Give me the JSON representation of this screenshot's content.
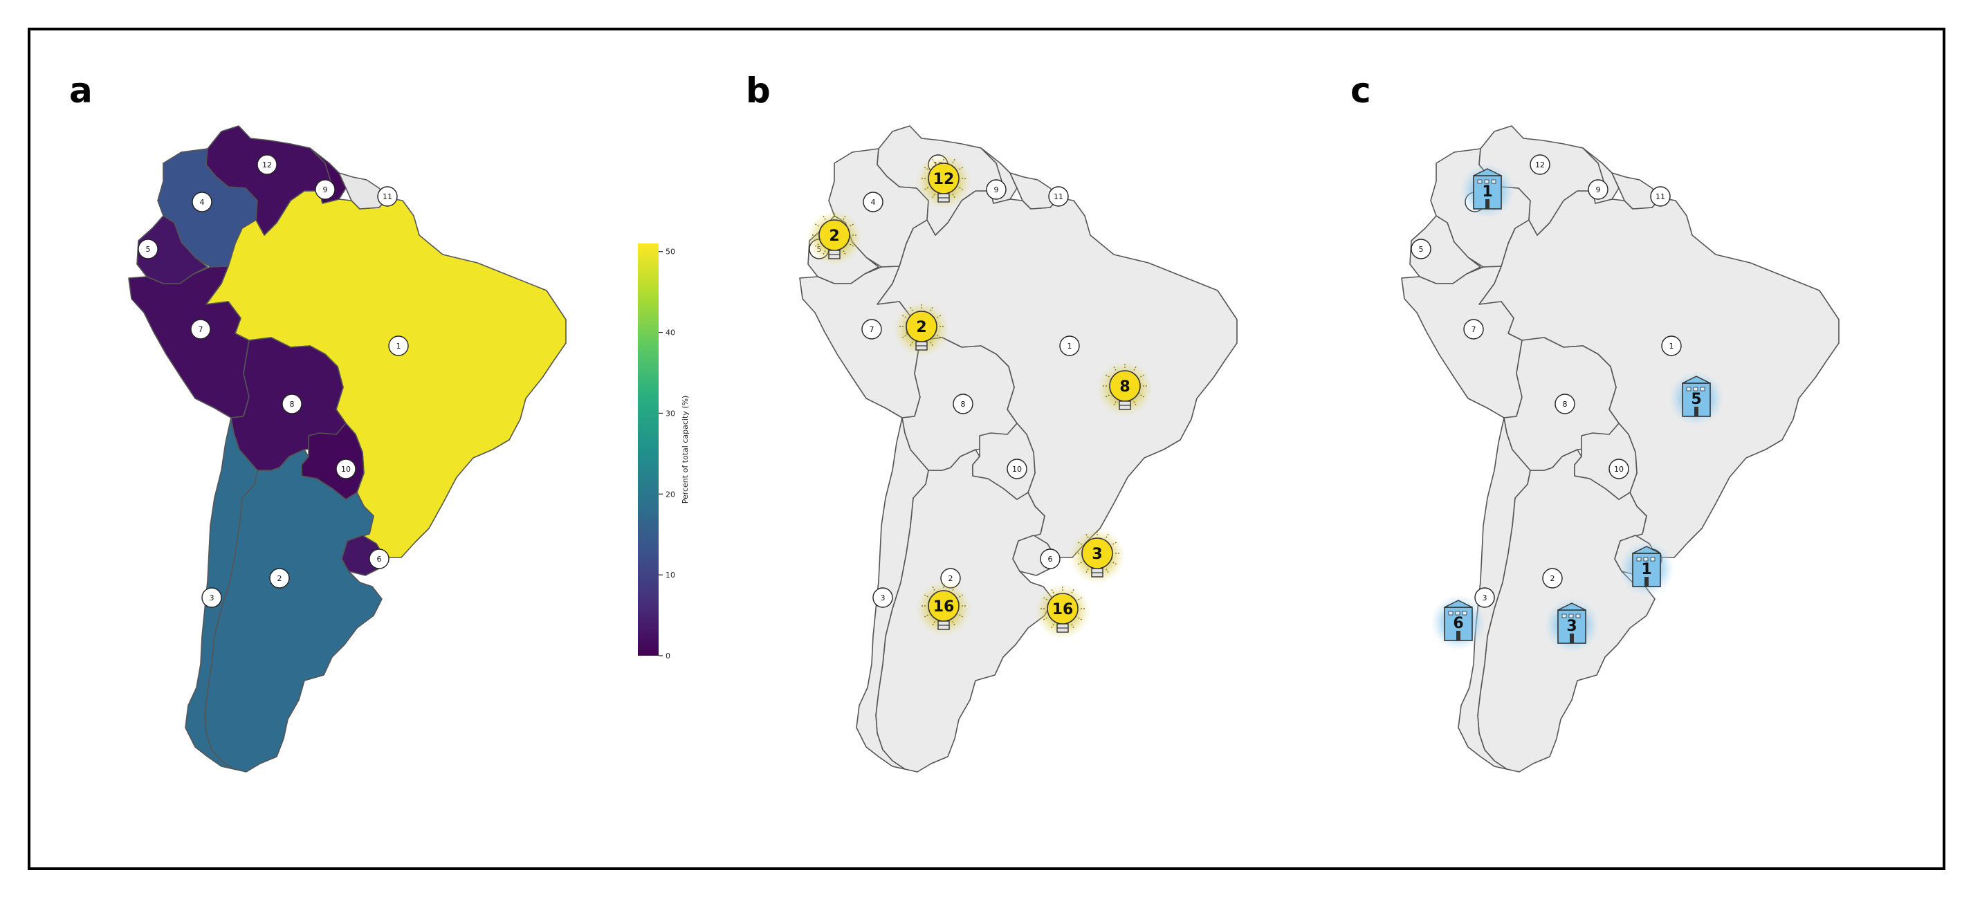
{
  "panels": [
    {
      "letter": "a",
      "mode": "choropleth"
    },
    {
      "letter": "b",
      "mode": "bulbs"
    },
    {
      "letter": "c",
      "mode": "buildings"
    }
  ],
  "country_labels": [
    {
      "id": "1",
      "label": "1"
    },
    {
      "id": "2",
      "label": "2"
    },
    {
      "id": "3",
      "label": "3"
    },
    {
      "id": "4",
      "label": "4"
    },
    {
      "id": "5",
      "label": "5"
    },
    {
      "id": "6",
      "label": "6"
    },
    {
      "id": "7",
      "label": "7"
    },
    {
      "id": "8",
      "label": "8"
    },
    {
      "id": "9",
      "label": "9"
    },
    {
      "id": "10",
      "label": "10"
    },
    {
      "id": "11",
      "label": "11"
    },
    {
      "id": "12",
      "label": "12"
    }
  ],
  "choropleth_values": {
    "1": 50,
    "2": 18,
    "3": 18,
    "4": 13,
    "5": 3,
    "6": 3,
    "7": 2,
    "8": 2,
    "9": 1,
    "10": 1,
    "12": 2
  },
  "colorbar": {
    "label": "Percent of total capacity (%)",
    "ticks": [
      "0",
      "10",
      "20",
      "30",
      "40",
      "50"
    ],
    "min": 0,
    "max": 51
  },
  "bulb_markers": [
    {
      "country": "12",
      "value": "12"
    },
    {
      "country": "5",
      "value": "2"
    },
    {
      "country": "7",
      "value": "2"
    },
    {
      "country": "1",
      "value": "8"
    },
    {
      "country": "6",
      "value": "3"
    },
    {
      "country": "3",
      "value": "16"
    },
    {
      "country": "2",
      "value": "16"
    }
  ],
  "building_markers": [
    {
      "country": "4",
      "value": "1"
    },
    {
      "country": "1",
      "value": "5"
    },
    {
      "country": "6",
      "value": "1"
    },
    {
      "country": "3",
      "value": "6"
    },
    {
      "country": "2",
      "value": "3"
    }
  ],
  "colors": {
    "land_grey": "#ebebeb",
    "outside_grey": "#e6e6e6",
    "bulb_yellow": "#f6dc1a",
    "bulb_glow": "#d9c72e",
    "building_blue": "#7fc2ea",
    "building_glow": "#8fc8ee"
  }
}
